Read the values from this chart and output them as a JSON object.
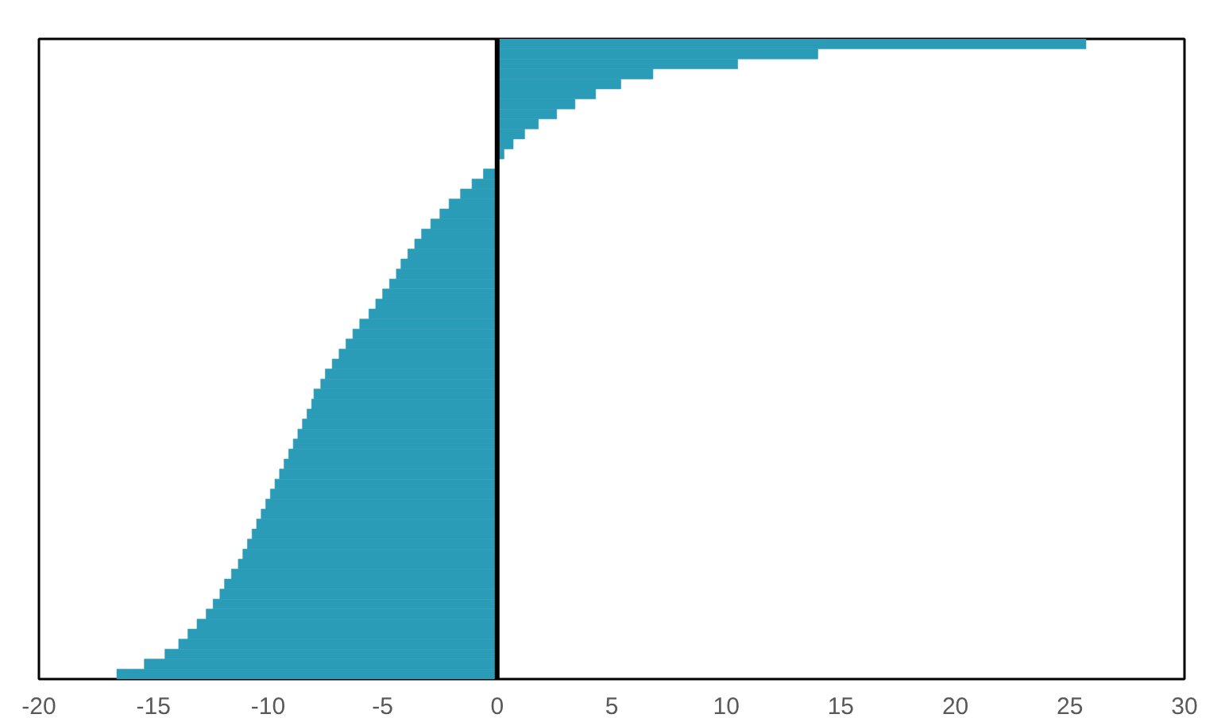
{
  "chart_data": {
    "type": "bar",
    "orientation": "horizontal",
    "color": "#2b9cb8",
    "categories": [
      null,
      null,
      null,
      null,
      null,
      null,
      null,
      null,
      null,
      null,
      null,
      null,
      null,
      null,
      null,
      null,
      null,
      null,
      null,
      null,
      null,
      null,
      null,
      null,
      null,
      null,
      null,
      null,
      null,
      null,
      null,
      null,
      null,
      null,
      null,
      null,
      null,
      null,
      null,
      null,
      null,
      null,
      null,
      null,
      null,
      null,
      null,
      null,
      null,
      null,
      null,
      null,
      null,
      null,
      null,
      null,
      null,
      null,
      null,
      null,
      null,
      null,
      null,
      null
    ],
    "values": [
      25.7,
      14,
      10.5,
      6.8,
      5.4,
      4.3,
      3.4,
      2.6,
      1.8,
      1.2,
      0.7,
      0.3,
      null,
      -0.6,
      -1.1,
      -1.6,
      -2.1,
      -2.5,
      -2.9,
      -3.3,
      -3.6,
      -3.9,
      -4.2,
      -4.4,
      -4.7,
      -5.0,
      -5.3,
      -5.6,
      -6.0,
      -6.3,
      -6.6,
      -6.9,
      -7.2,
      -7.5,
      -7.7,
      -8.0,
      -8.1,
      -8.3,
      -8.5,
      -8.7,
      -8.9,
      -9.1,
      -9.3,
      -9.5,
      -9.7,
      -9.9,
      -10.1,
      -10.3,
      -10.5,
      -10.7,
      -10.9,
      -11.1,
      -11.3,
      -11.6,
      -11.9,
      -12.1,
      -12.4,
      -12.7,
      -13.1,
      -13.5,
      -13.9,
      -14.5,
      -15.4,
      -16.6
    ],
    "xlim": [
      -20,
      30
    ],
    "xticks": [
      -20,
      -15,
      -10,
      -5,
      0,
      5,
      10,
      15,
      20,
      25,
      30
    ],
    "tick_labels": "x",
    "grid": false,
    "ref_lines": [
      {
        "axis": "x",
        "value": 0,
        "color": "#000000"
      }
    ]
  }
}
